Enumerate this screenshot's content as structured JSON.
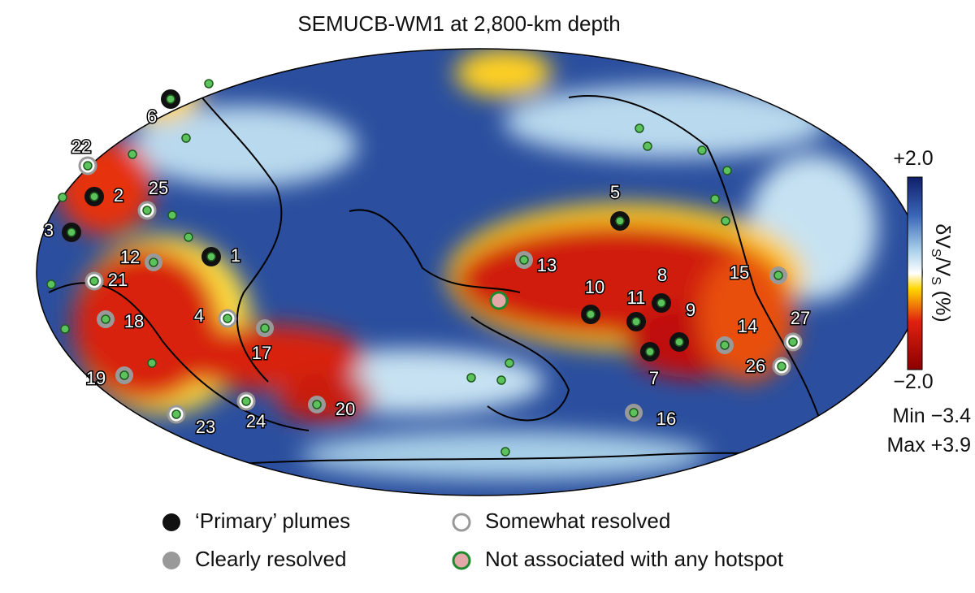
{
  "title": "SEMUCB-WM1 at 2,800-km depth",
  "colorbar": {
    "max_label": "+2.0",
    "min_label": "−2.0",
    "label_parts": [
      "δV",
      "S",
      "/V",
      "S",
      " (%)"
    ]
  },
  "stats": [
    "Min −3.4",
    "Max +3.9"
  ],
  "plumes": [
    "1",
    "2",
    "3",
    "4",
    "5",
    "6",
    "7",
    "8",
    "9",
    "10",
    "11",
    "12",
    "13",
    "14",
    "15",
    "16",
    "17",
    "18",
    "19",
    "20",
    "21",
    "22",
    "23",
    "24",
    "25",
    "26",
    "27"
  ],
  "legend": [
    "‘Primary’ plumes",
    "Somewhat resolved",
    "Clearly resolved",
    "Not associated with any hotspot"
  ]
}
